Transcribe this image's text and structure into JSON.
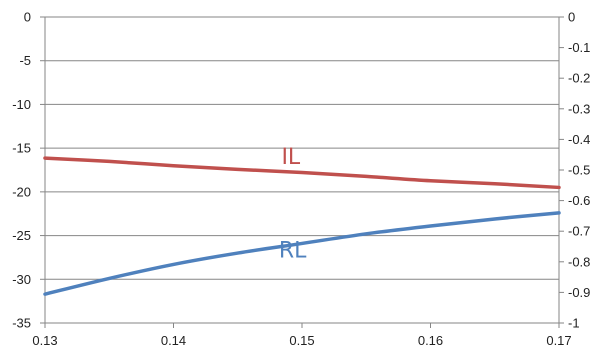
{
  "chart_data": {
    "type": "line",
    "title": "",
    "xlabel": "",
    "ylabel": "",
    "grid": true,
    "xlim": [
      0.13,
      0.17
    ],
    "x_ticks": [
      "0.13",
      "0.14",
      "0.15",
      "0.16",
      "0.17"
    ],
    "x_tick_values": [
      0.13,
      0.14,
      0.15,
      0.16,
      0.17
    ],
    "ylim_left": [
      -35,
      0
    ],
    "y_left_ticks": [
      "0",
      "-5",
      "-10",
      "-15",
      "-20",
      "-25",
      "-30",
      "-35"
    ],
    "y_left_tick_values": [
      0,
      -5,
      -10,
      -15,
      -20,
      -25,
      -30,
      -35
    ],
    "ylim_right": [
      -1,
      0
    ],
    "y_right_ticks": [
      "0",
      "-0.1",
      "-0.2",
      "-0.3",
      "-0.4",
      "-0.5",
      "-0.6",
      "-0.7",
      "-0.8",
      "-0.9",
      "-1"
    ],
    "y_right_tick_values": [
      0,
      -0.1,
      -0.2,
      -0.3,
      -0.4,
      -0.5,
      -0.6,
      -0.7,
      -0.8,
      -0.9,
      -1
    ],
    "series": [
      {
        "name": "IL",
        "axis": "right",
        "color": "#c0504d",
        "label_position": {
          "x": 0.1484,
          "y": -0.48
        },
        "x": [
          0.13,
          0.135,
          0.14,
          0.145,
          0.15,
          0.155,
          0.16,
          0.165,
          0.17
        ],
        "y": [
          -0.461,
          -0.472,
          -0.486,
          -0.498,
          -0.508,
          -0.521,
          -0.535,
          -0.545,
          -0.557
        ]
      },
      {
        "name": "RL",
        "axis": "left",
        "color": "#4f81bd",
        "label_position": {
          "x": 0.1482,
          "y": -27.5
        },
        "x": [
          0.13,
          0.135,
          0.14,
          0.145,
          0.15,
          0.155,
          0.16,
          0.165,
          0.17
        ],
        "y": [
          -31.7,
          -29.9,
          -28.3,
          -27.0,
          -25.9,
          -24.8,
          -23.9,
          -23.1,
          -22.4
        ]
      }
    ]
  }
}
